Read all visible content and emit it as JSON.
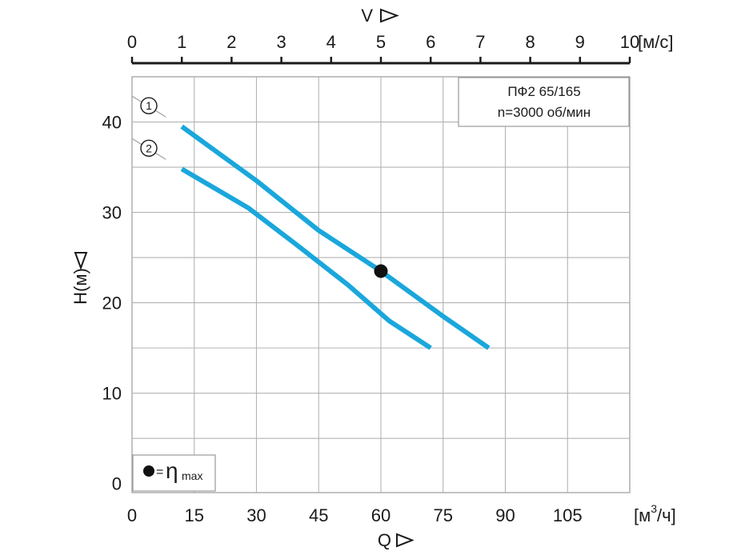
{
  "chart_data": {
    "type": "line",
    "info_box": [
      "ПФ2 65/165",
      "n=3000 об/мин"
    ],
    "top_axis": {
      "label": "V",
      "unit": "[м/с]",
      "ticks": [
        "0",
        "1",
        "2",
        "3",
        "4",
        "5",
        "6",
        "7",
        "8",
        "9",
        "10"
      ]
    },
    "bottom_axis": {
      "label": "Q",
      "unit_base": "[м",
      "unit_sup": "3",
      "unit_tail": "/ч]",
      "ticks": [
        "0",
        "15",
        "30",
        "45",
        "60",
        "75",
        "90",
        "105"
      ],
      "range": [
        0,
        120
      ]
    },
    "y_axis": {
      "label": "H(м)",
      "ticks": [
        "0",
        "10",
        "20",
        "30",
        "40"
      ],
      "range": [
        -1,
        45
      ]
    },
    "grid": true,
    "series": [
      {
        "name": "1",
        "color": "#1aa7dc",
        "x": [
          12,
          30,
          45,
          60,
          75,
          86
        ],
        "y": [
          39.5,
          33.5,
          28,
          23.5,
          18.5,
          15
        ]
      },
      {
        "name": "2",
        "color": "#1aa7dc",
        "x": [
          12,
          28,
          40,
          52,
          62,
          72
        ],
        "y": [
          34.8,
          30.5,
          26.3,
          22,
          18,
          15
        ]
      }
    ],
    "marker": {
      "x": 60,
      "y": 23.5,
      "color": "#111111"
    },
    "legend": {
      "symbol_eq": "=",
      "eta": "η",
      "eta_sub": "max",
      "placement": "bottom-left"
    }
  }
}
